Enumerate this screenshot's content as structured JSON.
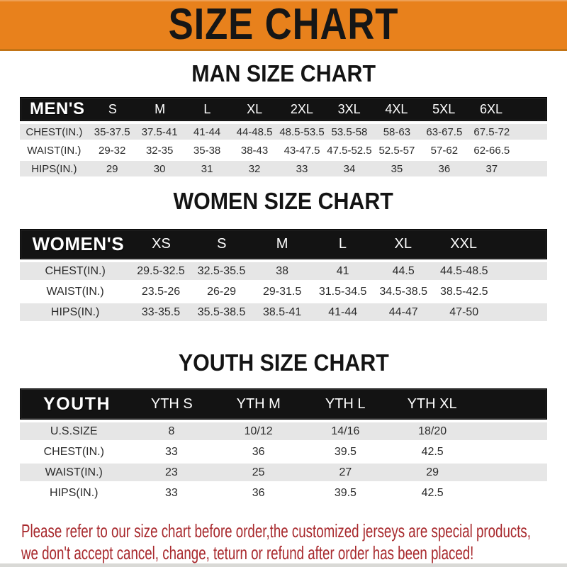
{
  "banner": {
    "title": "SIZE CHART"
  },
  "sections": [
    {
      "heading": "MAN SIZE CHART",
      "table": {
        "label": "MEN'S",
        "columns": [
          "S",
          "M",
          "L",
          "XL",
          "2XL",
          "3XL",
          "4XL",
          "5XL",
          "6XL"
        ],
        "rows": [
          {
            "label": "CHEST(IN.)",
            "values": [
              "35-37.5",
              "37.5-41",
              "41-44",
              "44-48.5",
              "48.5-53.5",
              "53.5-58",
              "58-63",
              "63-67.5",
              "67.5-72"
            ]
          },
          {
            "label": "WAIST(IN.)",
            "values": [
              "29-32",
              "32-35",
              "35-38",
              "38-43",
              "43-47.5",
              "47.5-52.5",
              "52.5-57",
              "57-62",
              "62-66.5"
            ]
          },
          {
            "label": "HIPS(IN.)",
            "values": [
              "29",
              "30",
              "31",
              "32",
              "33",
              "34",
              "35",
              "36",
              "37"
            ]
          }
        ]
      }
    },
    {
      "heading": "WOMEN SIZE CHART",
      "table": {
        "label": "WOMEN'S",
        "columns": [
          "XS",
          "S",
          "M",
          "L",
          "XL",
          "XXL"
        ],
        "rows": [
          {
            "label": "CHEST(IN.)",
            "values": [
              "29.5-32.5",
              "32.5-35.5",
              "38",
              "41",
              "44.5",
              "44.5-48.5"
            ]
          },
          {
            "label": "WAIST(IN.)",
            "values": [
              "23.5-26",
              "26-29",
              "29-31.5",
              "31.5-34.5",
              "34.5-38.5",
              "38.5-42.5"
            ]
          },
          {
            "label": "HIPS(IN.)",
            "values": [
              "33-35.5",
              "35.5-38.5",
              "38.5-41",
              "41-44",
              "44-47",
              "47-50"
            ]
          }
        ]
      }
    },
    {
      "heading": "YOUTH SIZE CHART",
      "table": {
        "label": "YOUTH",
        "columns": [
          "YTH S",
          "YTH M",
          "YTH L",
          "YTH XL"
        ],
        "rows": [
          {
            "label": "U.S.SIZE",
            "values": [
              "8",
              "10/12",
              "14/16",
              "18/20"
            ]
          },
          {
            "label": "CHEST(IN.)",
            "values": [
              "33",
              "36",
              "39.5",
              "42.5"
            ]
          },
          {
            "label": "WAIST(IN.)",
            "values": [
              "23",
              "25",
              "27",
              "29"
            ]
          },
          {
            "label": "HIPS(IN.)",
            "values": [
              "33",
              "36",
              "39.5",
              "42.5"
            ]
          }
        ]
      }
    }
  ],
  "footer": {
    "line1": "Please refer to our size chart before order,the customized jerseys are special products,",
    "line2": "we don't accept cancel, change, teturn or refund after order has been placed!"
  },
  "colors": {
    "banner_bg": "#e8811c",
    "banner_border": "#c27416",
    "table_header_bg": "#131313",
    "row_alt_bg": "#e6e6e6",
    "cell_text": "#2b2b2b",
    "footer_red": "#a8292d"
  }
}
